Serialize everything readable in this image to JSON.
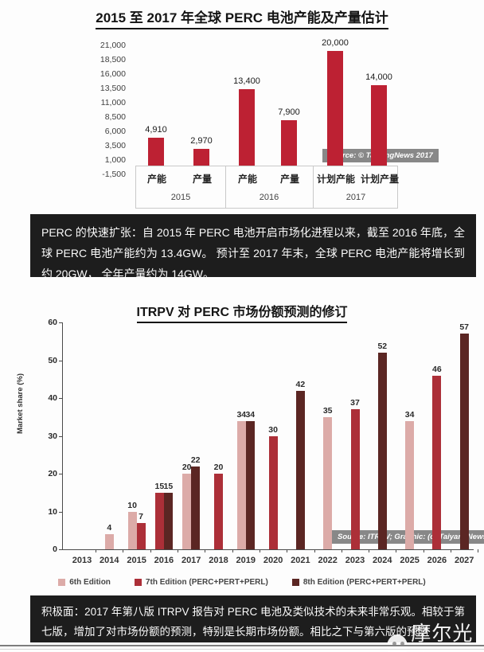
{
  "note1": {
    "text": "PERC 的快速扩张：自 2015 年 PERC 电池开启市场化进程以来，截至 2016 年底，全球 PERC 电池产能约为 13.4GW。 预计至 2017 年末，全球 PERC 电池产能将增长到约 20GW， 全年产量约为 14GW。"
  },
  "note2": {
    "text": "积极面：2017 年第八版 ITRPV 报告对 PERC 电池及类似技术的未来非常乐观。相较于第七版，增加了对市场份额的预测，特别是长期市场份额。相比之下与第六版的预测"
  },
  "watermark": {
    "text": "摩尔光伏",
    "icon": "moer-guangfu-logo"
  },
  "chart_data": [
    {
      "type": "bar",
      "title": "2015 至 2017 年全球 PERC 电池产能及产量估计",
      "categories": [
        "产能",
        "产量",
        "产能",
        "产量",
        "计划产能",
        "计划产量"
      ],
      "group_labels": [
        "2015",
        "2016",
        "2017"
      ],
      "values": [
        4910,
        2970,
        13400,
        7900,
        20000,
        14000
      ],
      "value_labels": [
        "4,910",
        "2,970",
        "13,400",
        "7,900",
        "20,000",
        "14,000"
      ],
      "y_ticks": [
        "21,000",
        "18,500",
        "16,000",
        "13,500",
        "11,000",
        "8,500",
        "6,000",
        "3,500",
        "1,000",
        "-1,500"
      ],
      "ylim": [
        -1500,
        21000
      ],
      "grid": "off",
      "bar_color": "#bd2133",
      "source": "Source: © TaiyangNews 2017"
    },
    {
      "type": "bar",
      "title": "ITRPV 对 PERC 市场份额预测的修订",
      "xlabel": "",
      "ylabel": "Market share (%)",
      "ylim": [
        0,
        60
      ],
      "y_ticks": [
        0,
        10,
        20,
        30,
        40,
        50,
        60
      ],
      "grid": "off",
      "legend_position": "bottom",
      "categories": [
        "2013",
        "2014",
        "2015",
        "2016",
        "2017",
        "2018",
        "2019",
        "2020",
        "2021",
        "2022",
        "2023",
        "2024",
        "2025",
        "2026",
        "2027"
      ],
      "series": [
        {
          "name": "6th Edition",
          "color": "#dcaba8",
          "points": {
            "2014": 4,
            "2015": 10,
            "2017": 20,
            "2019": 34,
            "2022": 35,
            "2025": 34
          }
        },
        {
          "name": "7th Edition (PERC+PERT+PERL)",
          "color": "#ac2f38",
          "points": {
            "2015": 7,
            "2016": 15,
            "2018": 20,
            "2020": 30,
            "2023": 37,
            "2026": 46
          }
        },
        {
          "name": "8th Edition (PERC+PERT+PERL)",
          "color": "#5b2623",
          "points": {
            "2016": 15,
            "2017": 22,
            "2019": 34,
            "2021": 42,
            "2024": 52,
            "2027": 57
          }
        }
      ],
      "source": "Source: ITRPV; Graphic: (c) TaiyangNews 2017"
    }
  ]
}
